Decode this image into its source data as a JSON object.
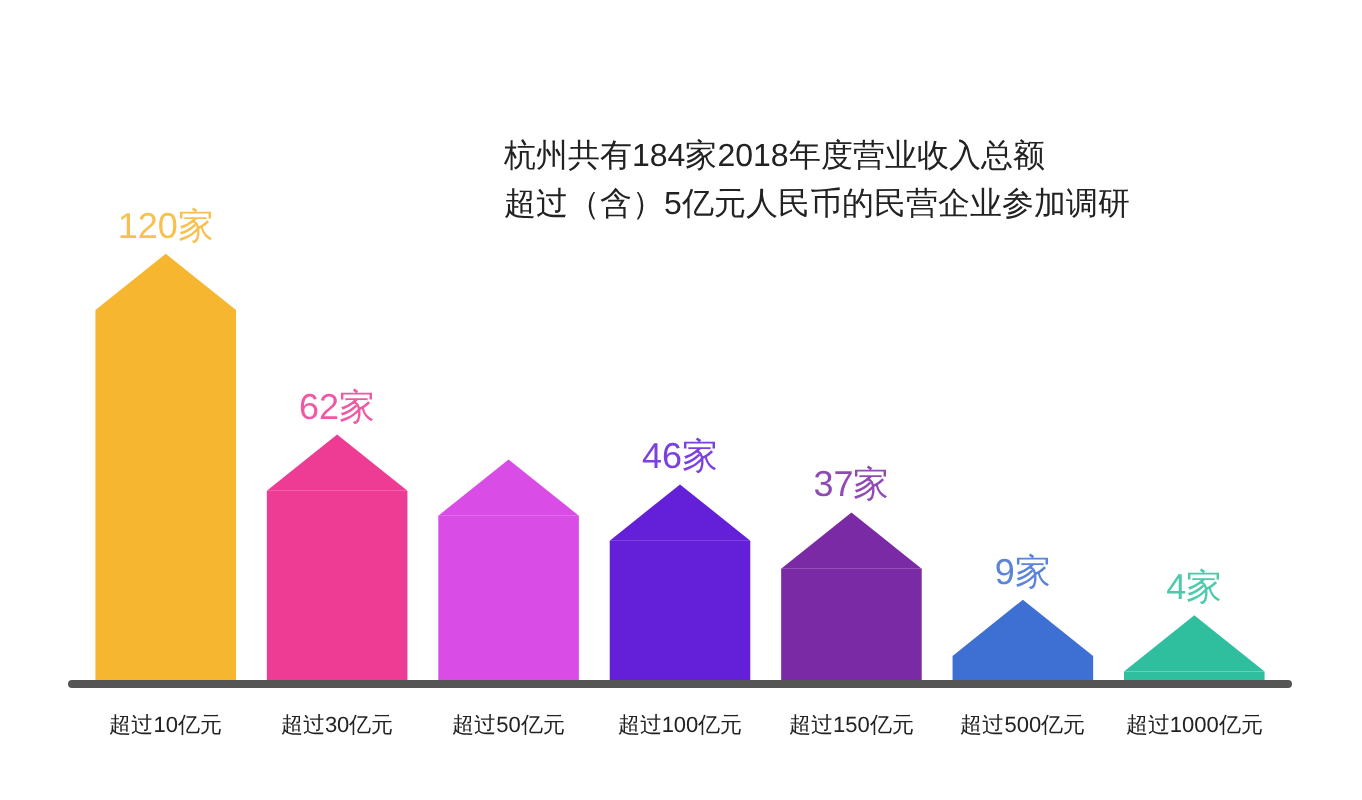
{
  "chart_data": {
    "type": "bar",
    "categories": [
      "超过10亿元",
      "超过30亿元",
      "超过50亿元",
      "超过100亿元",
      "超过150亿元",
      "超过500亿元",
      "超过1000亿元"
    ],
    "values": [
      120,
      62,
      54,
      46,
      37,
      9,
      4
    ],
    "value_labels": [
      "120家",
      "62家",
      null,
      "46家",
      "37家",
      "9家",
      "4家"
    ],
    "colors": [
      "#f7b630",
      "#ee3b93",
      "#d94ce6",
      "#6420d8",
      "#7b2aa6",
      "#3e6fd2",
      "#2fbf9e"
    ],
    "annotations": [
      "杭州共有184家2018年度营业收入总额",
      "超过（含）5亿元人民币的民营企业参加调研"
    ]
  }
}
